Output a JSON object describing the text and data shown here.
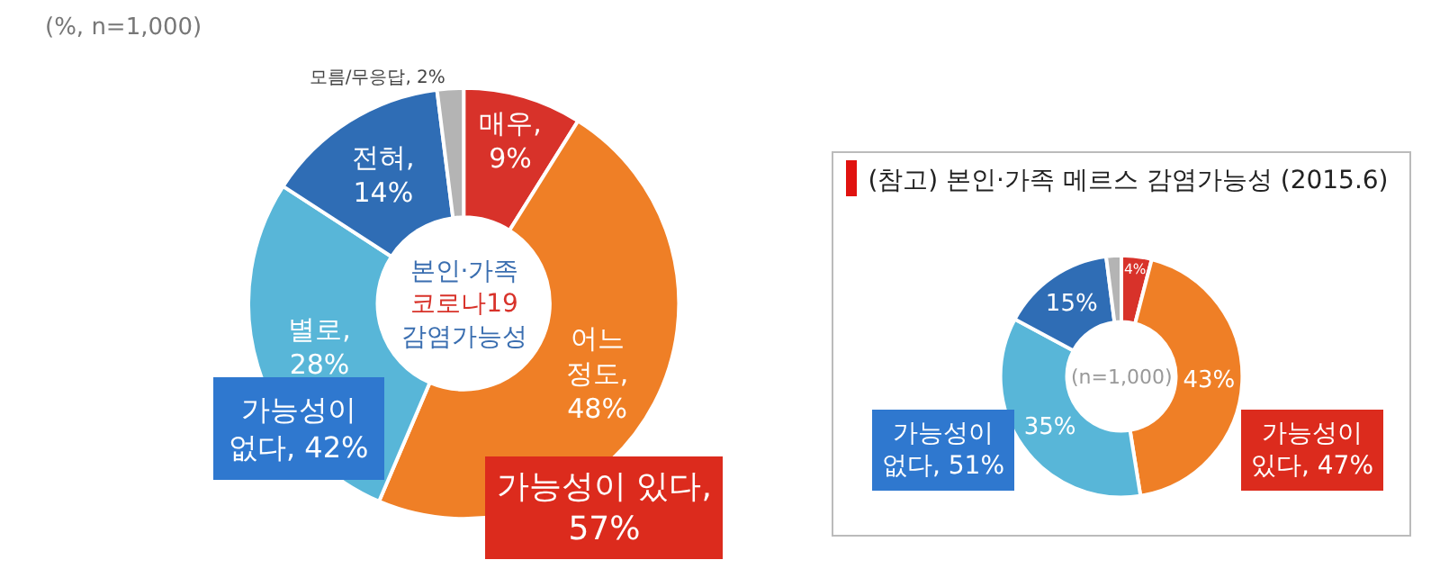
{
  "chart_data": [
    {
      "type": "donut",
      "title": "본인·가족\n코로나19\n감염가능성",
      "categories": [
        "매우",
        "어느 정도",
        "별로",
        "전혀",
        "모름/무응답"
      ],
      "values": [
        9,
        48,
        28,
        14,
        2
      ],
      "colors": [
        "#d8322a",
        "#ef7f26",
        "#58b6d8",
        "#2f6db5",
        "#b4b4b4"
      ],
      "value_labels": [
        ",\n9%",
        ",\n48%",
        ",\n28%",
        ",\n14%",
        ", 2%"
      ],
      "legend": false,
      "annotations": [
        "(%, n=1,000)",
        "가능성이\n없다, 42%",
        "가능성이 있다,\n57%"
      ]
    },
    {
      "type": "donut",
      "title": "(참고) 본인·가족 메르스 감염가능성 (2015.6)",
      "categories": [
        null,
        null,
        null,
        null,
        null
      ],
      "values": [
        4,
        43,
        35,
        15,
        2
      ],
      "colors": [
        "#d8322a",
        "#ef7f26",
        "#58b6d8",
        "#2f6db5",
        "#b4b4b4"
      ],
      "value_labels": [
        "4%",
        "43%",
        "35%",
        "15%",
        null
      ],
      "legend": false,
      "annotations": [
        "(n=1,000)",
        "가능성이\n없다, 51%",
        "가능성이\n있다, 47%"
      ]
    }
  ]
}
